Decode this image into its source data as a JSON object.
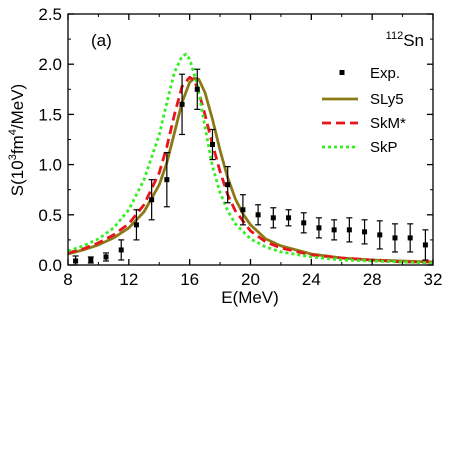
{
  "chart_data": {
    "type": "line",
    "panel_label": "(a)",
    "nucleus": {
      "mass_number": "112",
      "symbol": "Sn"
    },
    "xlabel": "E(MeV)",
    "ylabel": {
      "prefix": "S(10",
      "exp1": "3",
      "mid": "fm",
      "exp2": "4",
      "suffix": "/MeV)"
    },
    "xlim": [
      8,
      32
    ],
    "ylim": [
      0,
      2.5
    ],
    "xticks": [
      8,
      12,
      16,
      20,
      24,
      28,
      32
    ],
    "xtick_labels": [
      "8",
      "12",
      "16",
      "20",
      "24",
      "28",
      "32"
    ],
    "yticks": [
      0.0,
      0.5,
      1.0,
      1.5,
      2.0,
      2.5
    ],
    "ytick_labels": [
      "0.0",
      "0.5",
      "1.0",
      "1.5",
      "2.0",
      "2.5"
    ],
    "legend": {
      "placement": "right"
    },
    "grid": false,
    "experiment": {
      "name": "Exp.",
      "color": "#000000",
      "points": [
        {
          "x": 8.5,
          "y": 0.04,
          "err": 0.05
        },
        {
          "x": 9.5,
          "y": 0.05,
          "err": 0.03
        },
        {
          "x": 10.5,
          "y": 0.08,
          "err": 0.04
        },
        {
          "x": 11.5,
          "y": 0.15,
          "err": 0.1
        },
        {
          "x": 12.5,
          "y": 0.4,
          "err": 0.15
        },
        {
          "x": 13.5,
          "y": 0.65,
          "err": 0.2
        },
        {
          "x": 14.5,
          "y": 0.85,
          "err": 0.27
        },
        {
          "x": 15.5,
          "y": 1.6,
          "err": 0.3
        },
        {
          "x": 16.5,
          "y": 1.75,
          "err": 0.2
        },
        {
          "x": 17.5,
          "y": 1.2,
          "err": 0.15
        },
        {
          "x": 18.5,
          "y": 0.8,
          "err": 0.18
        },
        {
          "x": 19.5,
          "y": 0.55,
          "err": 0.15
        },
        {
          "x": 20.5,
          "y": 0.5,
          "err": 0.1
        },
        {
          "x": 21.5,
          "y": 0.47,
          "err": 0.1
        },
        {
          "x": 22.5,
          "y": 0.47,
          "err": 0.08
        },
        {
          "x": 23.5,
          "y": 0.42,
          "err": 0.1
        },
        {
          "x": 24.5,
          "y": 0.37,
          "err": 0.1
        },
        {
          "x": 25.5,
          "y": 0.35,
          "err": 0.1
        },
        {
          "x": 26.5,
          "y": 0.35,
          "err": 0.12
        },
        {
          "x": 27.5,
          "y": 0.33,
          "err": 0.12
        },
        {
          "x": 28.5,
          "y": 0.3,
          "err": 0.14
        },
        {
          "x": 29.5,
          "y": 0.27,
          "err": 0.14
        },
        {
          "x": 30.5,
          "y": 0.27,
          "err": 0.14
        },
        {
          "x": 31.5,
          "y": 0.2,
          "err": 0.15
        }
      ]
    },
    "series": [
      {
        "name": "SLy5",
        "color": "#8a7a16",
        "style": "solid",
        "x": [
          8,
          9,
          10,
          11,
          12,
          13,
          14,
          14.5,
          15,
          15.5,
          16,
          16.3,
          16.6,
          17,
          17.5,
          18,
          18.5,
          19,
          19.5,
          20,
          21,
          22,
          24,
          26,
          28,
          30,
          32
        ],
        "y": [
          0.11,
          0.15,
          0.2,
          0.27,
          0.37,
          0.53,
          0.8,
          1.02,
          1.32,
          1.62,
          1.82,
          1.86,
          1.85,
          1.72,
          1.45,
          1.14,
          0.87,
          0.66,
          0.51,
          0.4,
          0.26,
          0.19,
          0.11,
          0.07,
          0.05,
          0.04,
          0.03
        ]
      },
      {
        "name": "SkM*",
        "color": "#e8141c",
        "style": "dash",
        "x": [
          8,
          9,
          10,
          11,
          12,
          13,
          14,
          14.5,
          15,
          15.5,
          16,
          16.3,
          16.6,
          17,
          17.5,
          18,
          18.5,
          19,
          20,
          21,
          22,
          24,
          26,
          28,
          30,
          32
        ],
        "y": [
          0.12,
          0.16,
          0.22,
          0.3,
          0.41,
          0.6,
          0.92,
          1.18,
          1.5,
          1.78,
          1.87,
          1.84,
          1.72,
          1.5,
          1.2,
          0.93,
          0.7,
          0.54,
          0.34,
          0.23,
          0.17,
          0.1,
          0.07,
          0.05,
          0.03,
          0.03
        ]
      },
      {
        "name": "SkP",
        "color": "#33ee20",
        "style": "dot",
        "x": [
          8,
          9,
          10,
          11,
          12,
          13,
          14,
          14.5,
          15,
          15.5,
          15.75,
          16,
          16.5,
          17,
          17.5,
          18,
          18.5,
          19,
          20,
          21,
          22,
          24,
          26,
          28,
          30,
          32
        ],
        "y": [
          0.14,
          0.19,
          0.26,
          0.37,
          0.55,
          0.85,
          1.3,
          1.62,
          1.92,
          2.08,
          2.1,
          2.05,
          1.8,
          1.38,
          0.98,
          0.72,
          0.54,
          0.41,
          0.26,
          0.18,
          0.13,
          0.08,
          0.05,
          0.04,
          0.03,
          0.02
        ]
      }
    ]
  }
}
